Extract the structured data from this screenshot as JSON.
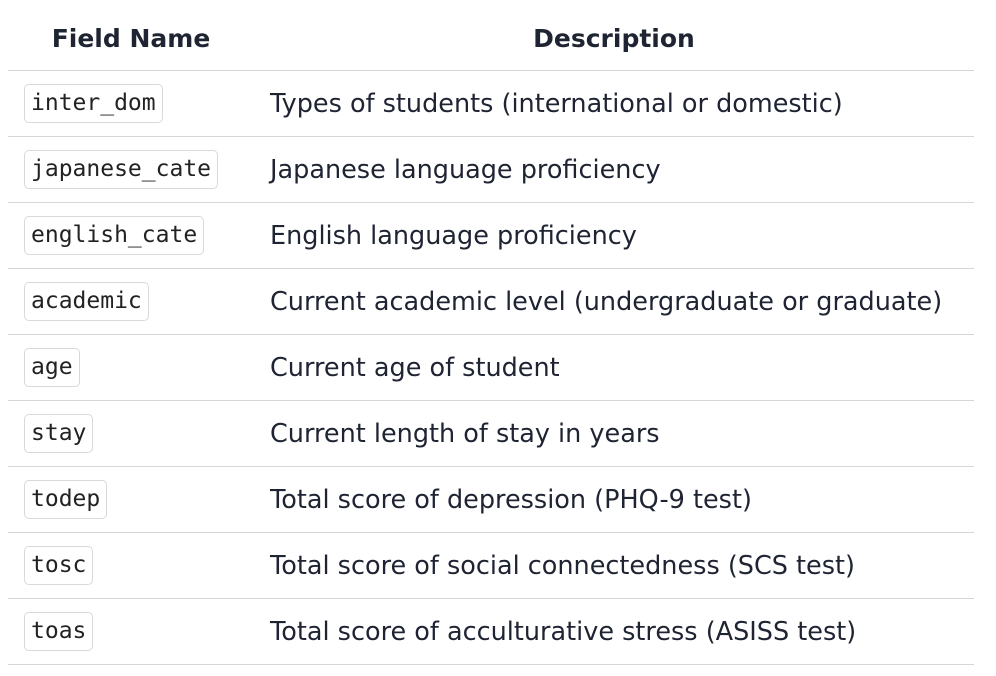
{
  "table": {
    "headers": {
      "field_name": "Field Name",
      "description": "Description"
    },
    "rows": [
      {
        "field": "inter_dom",
        "description": "Types of students (international or domestic)"
      },
      {
        "field": "japanese_cate",
        "description": "Japanese language proficiency"
      },
      {
        "field": "english_cate",
        "description": "English language proficiency"
      },
      {
        "field": "academic",
        "description": "Current academic level (undergraduate or graduate)"
      },
      {
        "field": "age",
        "description": "Current age of student"
      },
      {
        "field": "stay",
        "description": "Current length of stay in years"
      },
      {
        "field": "todep",
        "description": "Total score of depression (PHQ-9 test)"
      },
      {
        "field": "tosc",
        "description": "Total score of social connectedness (SCS test)"
      },
      {
        "field": "toas",
        "description": "Total score of acculturative stress (ASISS test)"
      }
    ]
  }
}
